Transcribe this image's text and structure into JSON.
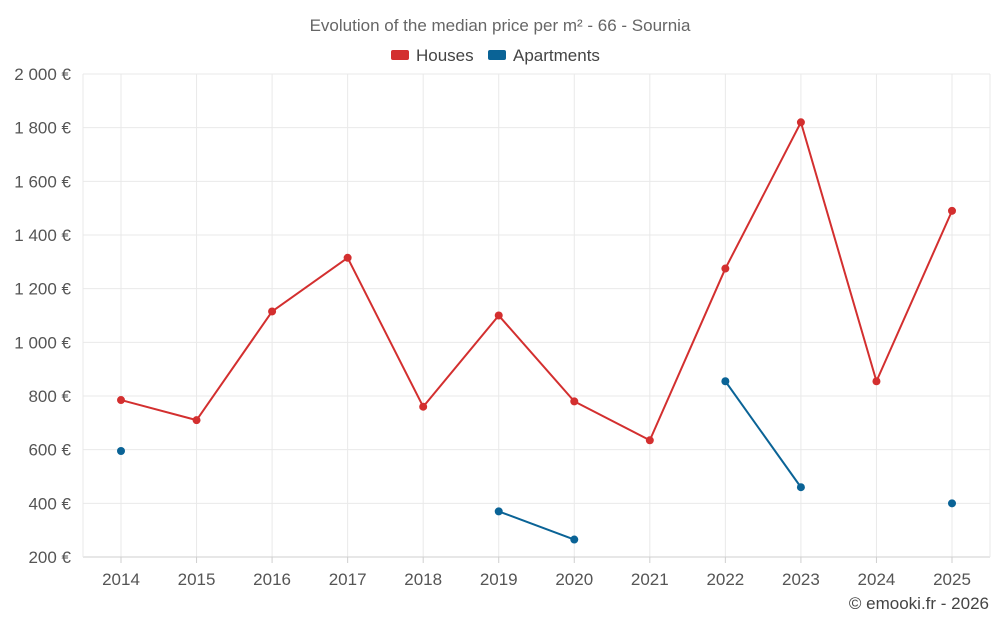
{
  "chart_data": {
    "type": "line",
    "title": "Evolution of the median price per m² - 66 - Sournia",
    "categories": [
      "2014",
      "2015",
      "2016",
      "2017",
      "2018",
      "2019",
      "2020",
      "2021",
      "2022",
      "2023",
      "2024",
      "2025"
    ],
    "ylim": [
      200,
      2000
    ],
    "yticks": [
      200,
      400,
      600,
      800,
      1000,
      1200,
      1400,
      1600,
      1800,
      2000
    ],
    "ytick_labels": [
      "200 €",
      "400 €",
      "600 €",
      "800 €",
      "1 000 €",
      "1 200 €",
      "1 400 €",
      "1 600 €",
      "1 800 €",
      "2 000 €"
    ],
    "legend_position": "top-center",
    "grid": true,
    "series": [
      {
        "name": "Houses",
        "color": "#d32f2f",
        "values": [
          785,
          710,
          1115,
          1315,
          760,
          1100,
          780,
          635,
          1275,
          1820,
          855,
          1490
        ]
      },
      {
        "name": "Apartments",
        "color": "#0a6396",
        "values": [
          595,
          null,
          null,
          null,
          null,
          370,
          265,
          null,
          855,
          460,
          null,
          400
        ]
      }
    ]
  },
  "credit": "© emooki.fr - 2026"
}
